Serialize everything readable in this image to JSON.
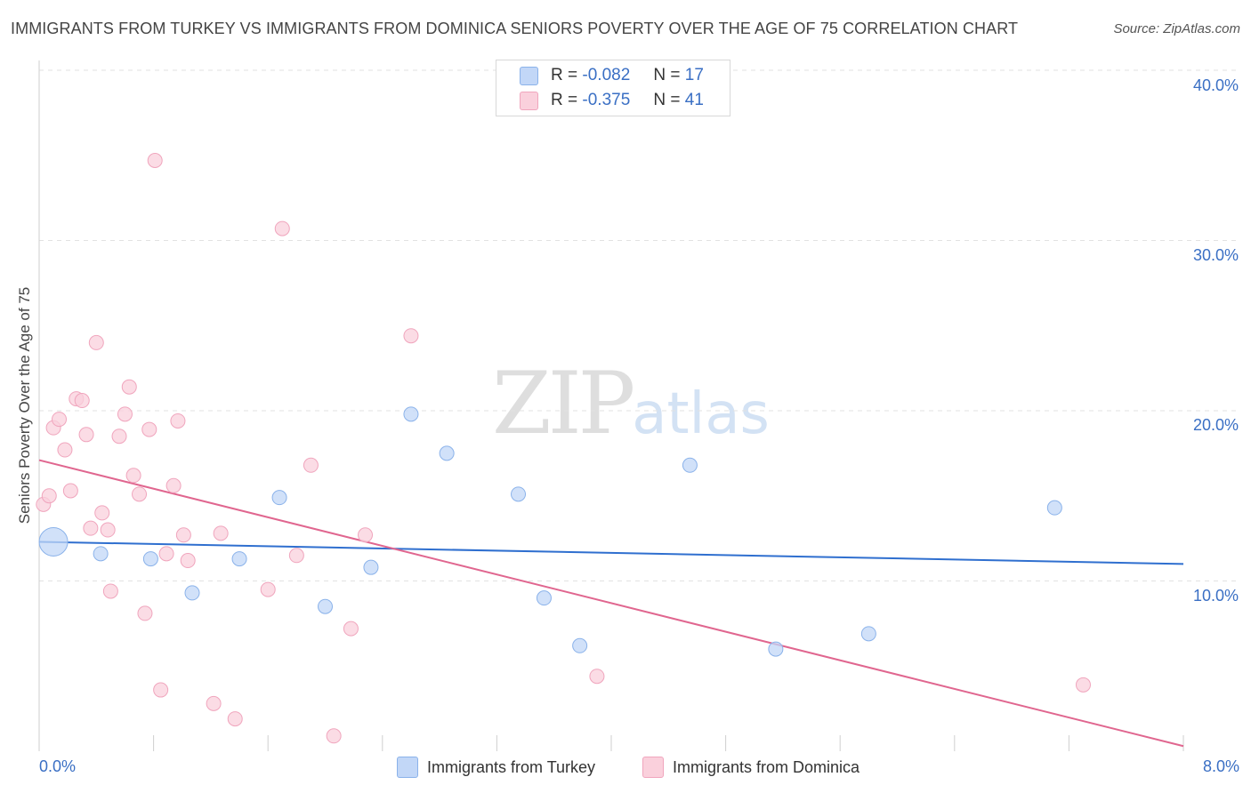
{
  "header": {
    "title": "IMMIGRANTS FROM TURKEY VS IMMIGRANTS FROM DOMINICA SENIORS POVERTY OVER THE AGE OF 75 CORRELATION CHART",
    "source": "Source: ZipAtlas.com"
  },
  "watermark": {
    "zip": "ZIP",
    "atlas": "atlas"
  },
  "stats": [
    {
      "r_label": "R =",
      "r_value": "-0.082",
      "n_label": "N =",
      "n_value": "17"
    },
    {
      "r_label": "R =",
      "r_value": "-0.375",
      "n_label": "N =",
      "n_value": "41"
    }
  ],
  "legend": [
    "Immigrants from Turkey",
    "Immigrants from Dominica"
  ],
  "colors": {
    "turkey_fill": "#c2d7f7",
    "turkey_stroke": "#8ab2ea",
    "turkey_line": "#2f6fcf",
    "dominica_fill": "#fad0dc",
    "dominica_stroke": "#f0a5bd",
    "dominica_line": "#e0668f",
    "tick_text": "#3a6fc4"
  },
  "chart_data": {
    "type": "scatter",
    "title": "IMMIGRANTS FROM TURKEY VS IMMIGRANTS FROM DOMINICA SENIORS POVERTY OVER THE AGE OF 75 CORRELATION CHART",
    "xlabel": "",
    "ylabel": "Seniors Poverty Over the Age of 75",
    "xlim": [
      0,
      8
    ],
    "ylim": [
      0,
      40
    ],
    "x_tick_labels": [
      "0.0%",
      "8.0%"
    ],
    "y_ticks": [
      10,
      20,
      30,
      40
    ],
    "y_tick_labels": [
      "10.0%",
      "20.0%",
      "30.0%",
      "40.0%"
    ],
    "grid": true,
    "series": [
      {
        "name": "Immigrants from Turkey",
        "r": -0.082,
        "n": 17,
        "trend": {
          "x": [
            0,
            8
          ],
          "y": [
            12.3,
            11.0
          ]
        },
        "points": [
          {
            "x": 0.1,
            "y": 12.3,
            "big": true
          },
          {
            "x": 0.43,
            "y": 11.6
          },
          {
            "x": 0.78,
            "y": 11.3
          },
          {
            "x": 1.07,
            "y": 9.3
          },
          {
            "x": 1.4,
            "y": 11.3
          },
          {
            "x": 1.68,
            "y": 14.9
          },
          {
            "x": 2.0,
            "y": 8.5
          },
          {
            "x": 2.32,
            "y": 10.8
          },
          {
            "x": 2.6,
            "y": 19.8
          },
          {
            "x": 2.85,
            "y": 17.5
          },
          {
            "x": 3.35,
            "y": 15.1
          },
          {
            "x": 3.53,
            "y": 9.0
          },
          {
            "x": 3.78,
            "y": 6.2
          },
          {
            "x": 4.55,
            "y": 16.8
          },
          {
            "x": 5.15,
            "y": 6.0
          },
          {
            "x": 5.8,
            "y": 6.9
          },
          {
            "x": 7.1,
            "y": 14.3
          }
        ]
      },
      {
        "name": "Immigrants from Dominica",
        "r": -0.375,
        "n": 41,
        "trend": {
          "x": [
            0,
            8
          ],
          "y": [
            17.1,
            0.3
          ]
        },
        "points": [
          {
            "x": 0.03,
            "y": 14.5
          },
          {
            "x": 0.07,
            "y": 15.0
          },
          {
            "x": 0.1,
            "y": 19.0
          },
          {
            "x": 0.14,
            "y": 19.5
          },
          {
            "x": 0.18,
            "y": 17.7
          },
          {
            "x": 0.22,
            "y": 15.3
          },
          {
            "x": 0.26,
            "y": 20.7
          },
          {
            "x": 0.3,
            "y": 20.6
          },
          {
            "x": 0.33,
            "y": 18.6
          },
          {
            "x": 0.36,
            "y": 13.1
          },
          {
            "x": 0.4,
            "y": 24.0
          },
          {
            "x": 0.44,
            "y": 14.0
          },
          {
            "x": 0.48,
            "y": 13.0
          },
          {
            "x": 0.5,
            "y": 9.4
          },
          {
            "x": 0.56,
            "y": 18.5
          },
          {
            "x": 0.6,
            "y": 19.8
          },
          {
            "x": 0.63,
            "y": 21.4
          },
          {
            "x": 0.66,
            "y": 16.2
          },
          {
            "x": 0.7,
            "y": 15.1
          },
          {
            "x": 0.74,
            "y": 8.1
          },
          {
            "x": 0.77,
            "y": 18.9
          },
          {
            "x": 0.81,
            "y": 34.7
          },
          {
            "x": 0.85,
            "y": 3.6
          },
          {
            "x": 0.89,
            "y": 11.6
          },
          {
            "x": 0.94,
            "y": 15.6
          },
          {
            "x": 0.97,
            "y": 19.4
          },
          {
            "x": 1.01,
            "y": 12.7
          },
          {
            "x": 1.04,
            "y": 11.2
          },
          {
            "x": 1.22,
            "y": 2.8
          },
          {
            "x": 1.27,
            "y": 12.8
          },
          {
            "x": 1.37,
            "y": 1.9
          },
          {
            "x": 1.6,
            "y": 9.5
          },
          {
            "x": 1.7,
            "y": 30.7
          },
          {
            "x": 1.8,
            "y": 11.5
          },
          {
            "x": 1.9,
            "y": 16.8
          },
          {
            "x": 2.06,
            "y": 0.9
          },
          {
            "x": 2.18,
            "y": 7.2
          },
          {
            "x": 2.28,
            "y": 12.7
          },
          {
            "x": 2.6,
            "y": 24.4
          },
          {
            "x": 3.9,
            "y": 4.4
          },
          {
            "x": 7.3,
            "y": 3.9
          }
        ]
      }
    ]
  }
}
